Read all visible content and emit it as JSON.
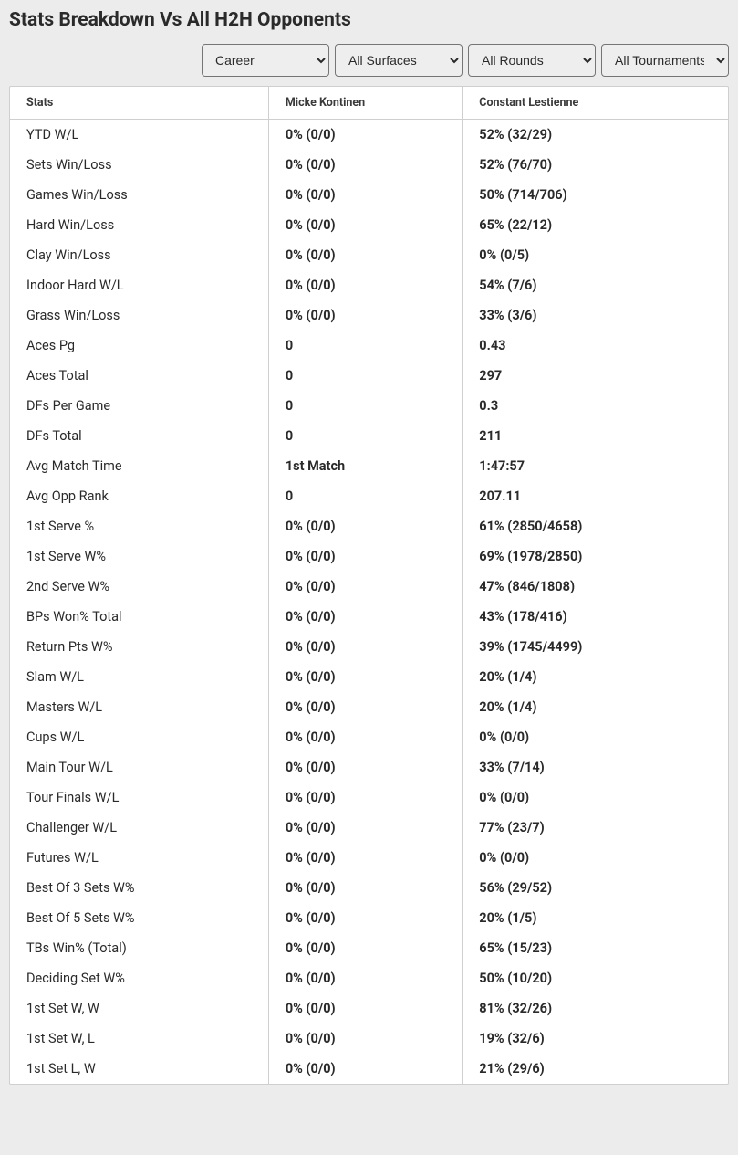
{
  "header": {
    "title": "Stats Breakdown Vs All H2H Opponents"
  },
  "filters": {
    "career": "Career",
    "surfaces": "All Surfaces",
    "rounds": "All Rounds",
    "tournaments": "All Tournaments"
  },
  "table": {
    "columns": [
      "Stats",
      "Micke Kontinen",
      "Constant Lestienne"
    ],
    "rows": [
      [
        "YTD W/L",
        "0% (0/0)",
        "52% (32/29)"
      ],
      [
        "Sets Win/Loss",
        "0% (0/0)",
        "52% (76/70)"
      ],
      [
        "Games Win/Loss",
        "0% (0/0)",
        "50% (714/706)"
      ],
      [
        "Hard Win/Loss",
        "0% (0/0)",
        "65% (22/12)"
      ],
      [
        "Clay Win/Loss",
        "0% (0/0)",
        "0% (0/5)"
      ],
      [
        "Indoor Hard W/L",
        "0% (0/0)",
        "54% (7/6)"
      ],
      [
        "Grass Win/Loss",
        "0% (0/0)",
        "33% (3/6)"
      ],
      [
        "Aces Pg",
        "0",
        "0.43"
      ],
      [
        "Aces Total",
        "0",
        "297"
      ],
      [
        "DFs Per Game",
        "0",
        "0.3"
      ],
      [
        "DFs Total",
        "0",
        "211"
      ],
      [
        "Avg Match Time",
        "1st Match",
        "1:47:57"
      ],
      [
        "Avg Opp Rank",
        "0",
        "207.11"
      ],
      [
        "1st Serve %",
        "0% (0/0)",
        "61% (2850/4658)"
      ],
      [
        "1st Serve W%",
        "0% (0/0)",
        "69% (1978/2850)"
      ],
      [
        "2nd Serve W%",
        "0% (0/0)",
        "47% (846/1808)"
      ],
      [
        "BPs Won% Total",
        "0% (0/0)",
        "43% (178/416)"
      ],
      [
        "Return Pts W%",
        "0% (0/0)",
        "39% (1745/4499)"
      ],
      [
        "Slam W/L",
        "0% (0/0)",
        "20% (1/4)"
      ],
      [
        "Masters W/L",
        "0% (0/0)",
        "20% (1/4)"
      ],
      [
        "Cups W/L",
        "0% (0/0)",
        "0% (0/0)"
      ],
      [
        "Main Tour W/L",
        "0% (0/0)",
        "33% (7/14)"
      ],
      [
        "Tour Finals W/L",
        "0% (0/0)",
        "0% (0/0)"
      ],
      [
        "Challenger W/L",
        "0% (0/0)",
        "77% (23/7)"
      ],
      [
        "Futures W/L",
        "0% (0/0)",
        "0% (0/0)"
      ],
      [
        "Best Of 3 Sets W%",
        "0% (0/0)",
        "56% (29/52)"
      ],
      [
        "Best Of 5 Sets W%",
        "0% (0/0)",
        "20% (1/5)"
      ],
      [
        "TBs Win% (Total)",
        "0% (0/0)",
        "65% (15/23)"
      ],
      [
        "Deciding Set W%",
        "0% (0/0)",
        "50% (10/20)"
      ],
      [
        "1st Set W, W",
        "0% (0/0)",
        "81% (32/26)"
      ],
      [
        "1st Set W, L",
        "0% (0/0)",
        "19% (32/6)"
      ],
      [
        "1st Set L, W",
        "0% (0/0)",
        "21% (29/6)"
      ]
    ]
  }
}
